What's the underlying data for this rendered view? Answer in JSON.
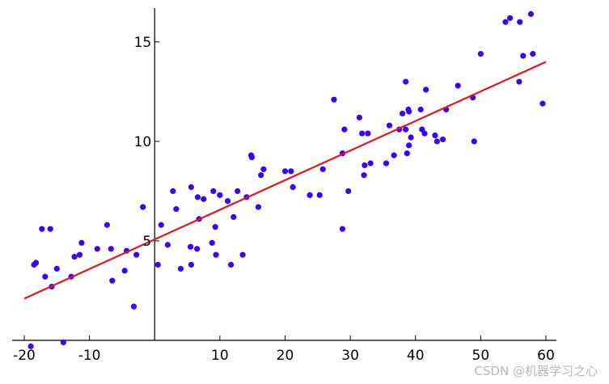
{
  "chart_data": {
    "type": "scatter",
    "title": "",
    "xlabel": "",
    "ylabel": "",
    "xlim": [
      -20,
      60
    ],
    "ylim": [
      0,
      16.7
    ],
    "x_ticks": [
      -20,
      -10,
      10,
      20,
      30,
      40,
      50,
      60
    ],
    "x_tick_labels": [
      "-20",
      "-10",
      "10",
      "20",
      "30",
      "40",
      "50",
      "60"
    ],
    "y_ticks": [
      5,
      10,
      15
    ],
    "y_tick_labels": [
      "5",
      "10",
      "15"
    ],
    "grid": false,
    "legend": "none",
    "point_color": "#3a00ff",
    "line_color": "#e8141a",
    "points": [
      [
        -19,
        -0.3
      ],
      [
        -18.5,
        3.8
      ],
      [
        -18.2,
        3.9
      ],
      [
        -17.3,
        5.6
      ],
      [
        -16.8,
        3.2
      ],
      [
        -16,
        5.6
      ],
      [
        -15.8,
        2.7
      ],
      [
        -15,
        3.6
      ],
      [
        -14,
        -0.1
      ],
      [
        -12.8,
        3.2
      ],
      [
        -12.3,
        4.2
      ],
      [
        -11.5,
        4.3
      ],
      [
        -11.2,
        4.9
      ],
      [
        -8.8,
        4.6
      ],
      [
        -7.3,
        5.8
      ],
      [
        -6.7,
        4.6
      ],
      [
        -6.5,
        3.0
      ],
      [
        -4.6,
        3.5
      ],
      [
        -4.3,
        4.5
      ],
      [
        -3.2,
        1.7
      ],
      [
        -2.8,
        4.3
      ],
      [
        -1.8,
        6.7
      ],
      [
        0.5,
        3.8
      ],
      [
        1,
        5.8
      ],
      [
        2,
        4.8
      ],
      [
        2.8,
        7.5
      ],
      [
        3.3,
        6.6
      ],
      [
        4,
        3.6
      ],
      [
        5.6,
        3.8
      ],
      [
        5.5,
        4.7
      ],
      [
        5.6,
        7.7
      ],
      [
        6.6,
        7.2
      ],
      [
        6.5,
        4.6
      ],
      [
        6.8,
        6.1
      ],
      [
        7.5,
        7.1
      ],
      [
        8.8,
        4.9
      ],
      [
        9.0,
        7.5
      ],
      [
        9.3,
        5.7
      ],
      [
        9.4,
        4.3
      ],
      [
        10.0,
        7.3
      ],
      [
        11.2,
        7.0
      ],
      [
        11.7,
        3.8
      ],
      [
        12.1,
        6.2
      ],
      [
        12.7,
        7.5
      ],
      [
        13.5,
        4.3
      ],
      [
        14.1,
        7.2
      ],
      [
        14.8,
        9.3
      ],
      [
        14.9,
        9.2
      ],
      [
        15.9,
        6.7
      ],
      [
        16.3,
        8.3
      ],
      [
        16.7,
        8.6
      ],
      [
        20.0,
        8.5
      ],
      [
        20.9,
        8.5
      ],
      [
        21.2,
        7.7
      ],
      [
        23.8,
        7.3
      ],
      [
        25.3,
        7.3
      ],
      [
        25.8,
        8.6
      ],
      [
        27.5,
        12.1
      ],
      [
        28.8,
        9.4
      ],
      [
        28.8,
        5.6
      ],
      [
        29.1,
        10.6
      ],
      [
        29.7,
        7.5
      ],
      [
        31.4,
        11.2
      ],
      [
        31.8,
        10.4
      ],
      [
        32.1,
        8.3
      ],
      [
        32.2,
        8.8
      ],
      [
        32.7,
        10.4
      ],
      [
        33.1,
        8.9
      ],
      [
        35.5,
        8.9
      ],
      [
        36.0,
        10.8
      ],
      [
        36.7,
        9.3
      ],
      [
        37.5,
        10.6
      ],
      [
        38.0,
        11.4
      ],
      [
        38.5,
        13.0
      ],
      [
        38.5,
        10.6
      ],
      [
        38.7,
        9.4
      ],
      [
        38.9,
        11.6
      ],
      [
        39.0,
        11.5
      ],
      [
        39.0,
        9.8
      ],
      [
        39.3,
        10.2
      ],
      [
        40.8,
        11.6
      ],
      [
        41.0,
        10.6
      ],
      [
        41.4,
        10.4
      ],
      [
        41.6,
        12.6
      ],
      [
        43.0,
        10.3
      ],
      [
        43.3,
        10.0
      ],
      [
        44.2,
        10.1
      ],
      [
        44.7,
        11.6
      ],
      [
        46.5,
        12.8
      ],
      [
        48.8,
        12.2
      ],
      [
        49.0,
        10.0
      ],
      [
        50.0,
        14.4
      ],
      [
        53.8,
        16.0
      ],
      [
        54.5,
        16.2
      ],
      [
        55.9,
        13.0
      ],
      [
        56.0,
        16.0
      ],
      [
        56.5,
        14.3
      ],
      [
        57.7,
        16.4
      ],
      [
        58.0,
        14.4
      ],
      [
        59.5,
        11.9
      ]
    ],
    "line": [
      [
        -20,
        2.1
      ],
      [
        60,
        14.0
      ]
    ]
  },
  "watermark": "CSDN @机器学习之心"
}
